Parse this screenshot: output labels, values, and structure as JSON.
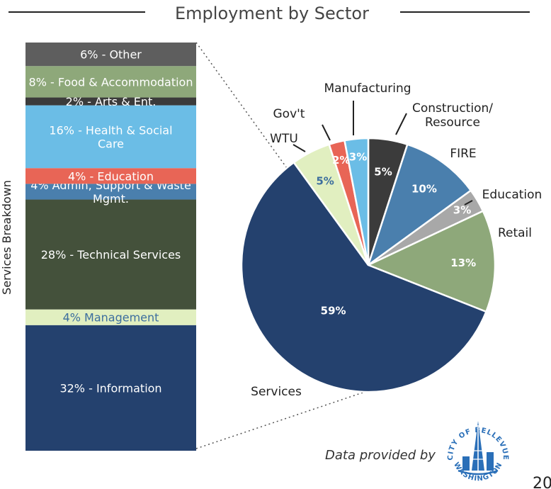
{
  "title": "Employment by Sector",
  "side_label": "Services Breakdown",
  "footer": {
    "text": "Data provided by",
    "logo_top": "CITY OF BELLEVUE",
    "logo_bottom": "WASHINGTON"
  },
  "page_number": "20",
  "colors": {
    "navy": "#24416e",
    "steel": "#4a7fad",
    "sky": "#6bbde6",
    "sage": "#8ea87a",
    "dark": "#3b3b3b",
    "gray": "#a8a8a8",
    "red": "#e86556",
    "pale": "#e1efc0",
    "olive": "#44513b",
    "darkgray": "#5e5e5e"
  },
  "chart_data": [
    {
      "type": "pie",
      "title": "Employment by Sector",
      "slices": [
        {
          "label": "Construction/ Resource",
          "value": 5,
          "text": "5%",
          "color": "#3b3b3b",
          "text_color": "#ffffff"
        },
        {
          "label": "FIRE",
          "value": 10,
          "text": "10%",
          "color": "#4a7fad",
          "text_color": "#ffffff"
        },
        {
          "label": "Education",
          "value": 3,
          "text": "3%",
          "color": "#a8a8a8",
          "text_color": "#ffffff"
        },
        {
          "label": "Retail",
          "value": 13,
          "text": "13%",
          "color": "#8ea87a",
          "text_color": "#ffffff"
        },
        {
          "label": "Services",
          "value": 59,
          "text": "59%",
          "color": "#24416e",
          "text_color": "#ffffff"
        },
        {
          "label": "WTU",
          "value": 5,
          "text": "5%",
          "color": "#e1efc0",
          "text_color": "#3c6e9e"
        },
        {
          "label": "Gov't",
          "value": 2,
          "text": "2%",
          "color": "#e86556",
          "text_color": "#ffffff"
        },
        {
          "label": "Manufacturing",
          "value": 3,
          "text": "3%",
          "color": "#6bbde6",
          "text_color": "#ffffff"
        }
      ]
    },
    {
      "type": "bar",
      "orientation": "stacked-vertical",
      "ylabel": "Services Breakdown",
      "segments": [
        {
          "text": "32% - Information",
          "value": 32,
          "color": "#24416e",
          "text_color": "#ffffff"
        },
        {
          "text": "4% Management",
          "value": 4,
          "color": "#e1efc0",
          "text_color": "#3c6e9e"
        },
        {
          "text": "28% - Technical Services",
          "value": 28,
          "color": "#44513b",
          "text_color": "#ffffff"
        },
        {
          "text": "4% Admin, Support & Waste Mgmt.",
          "value": 4,
          "color": "#4a7fad",
          "text_color": "#ffffff"
        },
        {
          "text": "4% - Education",
          "value": 4,
          "color": "#e86556",
          "text_color": "#ffffff"
        },
        {
          "text": "16% - Health & Social Care",
          "value": 16,
          "color": "#6bbde6",
          "text_color": "#ffffff"
        },
        {
          "text": "2% - Arts & Ent.",
          "value": 2,
          "color": "#3b3b3b",
          "text_color": "#ffffff"
        },
        {
          "text": "8% - Food & Accommodation",
          "value": 8,
          "color": "#8ea87a",
          "text_color": "#ffffff"
        },
        {
          "text": "6% - Other",
          "value": 6,
          "color": "#5e5e5e",
          "text_color": "#ffffff"
        }
      ]
    }
  ]
}
